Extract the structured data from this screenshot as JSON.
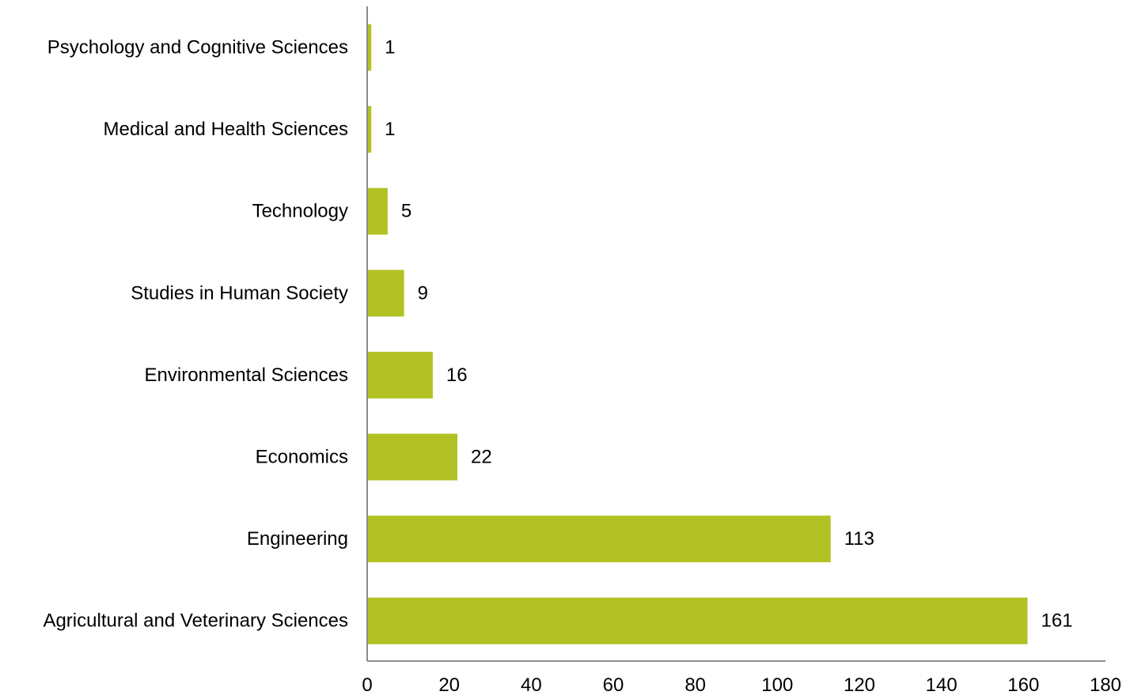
{
  "chart_data": {
    "type": "bar",
    "orientation": "horizontal",
    "title": "",
    "xlabel": "",
    "ylabel": "",
    "categories": [
      "Psychology and Cognitive Sciences",
      "Medical and Health Sciences",
      "Technology",
      "Studies in Human Society",
      "Environmental Sciences",
      "Economics",
      "Engineering",
      "Agricultural and Veterinary Sciences"
    ],
    "values": [
      1,
      1,
      5,
      9,
      16,
      22,
      113,
      161
    ],
    "xlim": [
      0,
      180
    ],
    "x_ticks": [
      0,
      20,
      40,
      60,
      80,
      100,
      120,
      140,
      160,
      180
    ],
    "data_labels": true,
    "grid": false,
    "legend": "none",
    "bar_color": "#b2c225",
    "axis_color": "#8c8c8c"
  }
}
